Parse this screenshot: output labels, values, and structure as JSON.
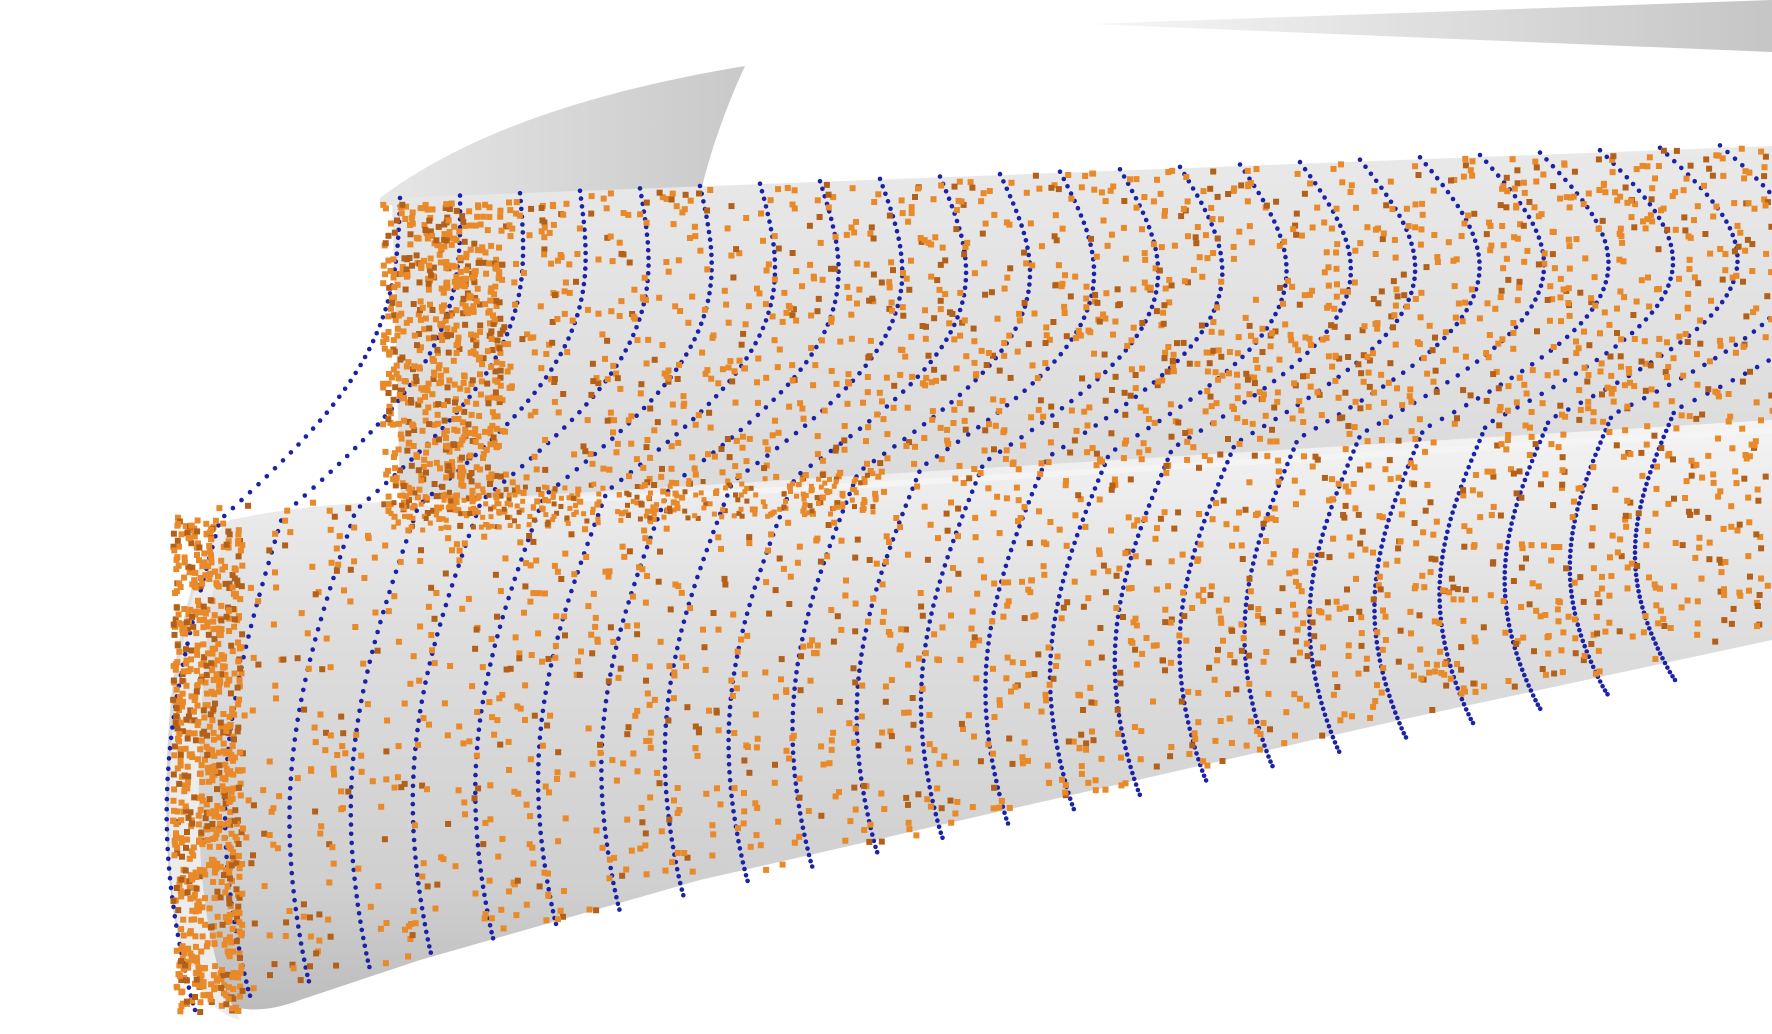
{
  "scene": {
    "description_free": true,
    "background_color": "#ffffff",
    "surface_color": "#d9d9d9",
    "surface_shadow_color": "#bdbdbd",
    "highlight_color": "#f2f2f2",
    "line_marker_color": "#1a22a8",
    "scatter_marker_color": "#e8892a",
    "scatter_marker_shadow": "#b3611a"
  }
}
